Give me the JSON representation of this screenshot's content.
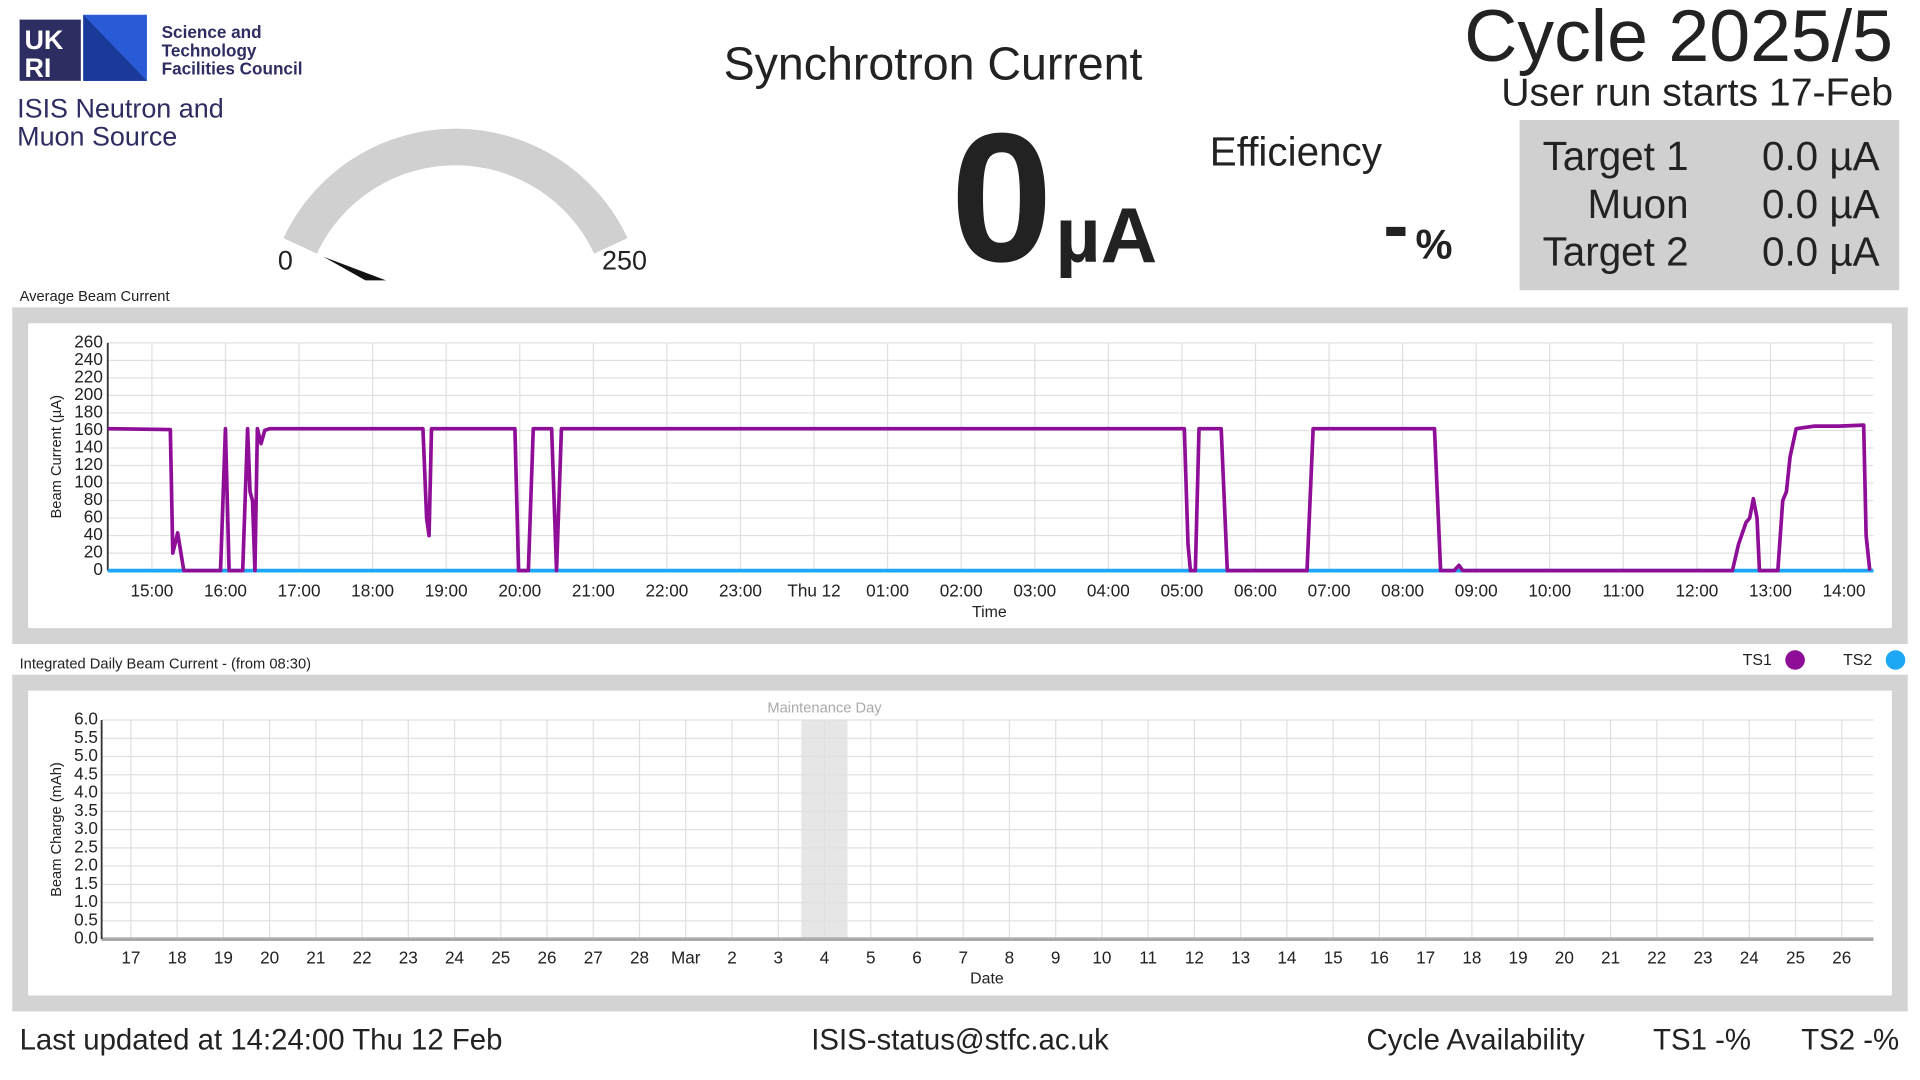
{
  "logo": [
    "UK",
    "RI"
  ],
  "header": {
    "org": [
      "Science and",
      "Technology",
      "Facilities Council"
    ],
    "source": [
      "ISIS Neutron and",
      "Muon Source"
    ],
    "title": "Synchrotron Current",
    "cycle": "Cycle 2025/5",
    "run_start": "User run starts 17-Feb"
  },
  "gauge": {
    "min": 0,
    "max": 250
  },
  "current": {
    "value": 0,
    "unit": "µA"
  },
  "efficiency": {
    "label": "Efficiency",
    "value": "-",
    "unit": "%"
  },
  "targets": [
    {
      "name": "Target 1",
      "value": "0.0 µA"
    },
    {
      "name": "Muon",
      "value": "0.0 µA"
    },
    {
      "name": "Target 2",
      "value": "0.0 µA"
    }
  ],
  "chart_data": [
    {
      "type": "line",
      "title": "Average Beam Current",
      "xlabel": "Time",
      "ylabel": "Beam Current (µA)",
      "xlim": [
        "14:24",
        "14:24"
      ],
      "xticks": [
        "15:00",
        "16:00",
        "17:00",
        "18:00",
        "19:00",
        "20:00",
        "21:00",
        "22:00",
        "23:00",
        {
          "value": "00:00",
          "label": "Thu 12"
        },
        "01:00",
        "02:00",
        "03:00",
        "04:00",
        "05:00",
        "06:00",
        "07:00",
        "08:00",
        "09:00",
        "10:00",
        "11:00",
        "12:00",
        "13:00",
        "14:00"
      ],
      "ylim": [
        0,
        260
      ],
      "yticks": [
        0,
        20,
        40,
        60,
        80,
        100,
        120,
        140,
        160,
        180,
        200,
        220,
        240,
        260
      ],
      "grid": true,
      "series": [
        {
          "name": "TS1",
          "color": "#8e0e98",
          "x": [
            "14:24",
            "15:15",
            "15:17",
            "15:21",
            "15:26",
            "15:56",
            "16:00",
            "16:03",
            "16:14",
            "16:18",
            "16:20",
            "16:22",
            "16:24",
            "16:26",
            "16:29",
            "16:32",
            "16:36",
            "18:41",
            "18:44",
            "18:46",
            "18:48",
            "19:56",
            "19:59",
            "20:07",
            "20:11",
            "20:26",
            "20:30",
            "20:34",
            "05:02",
            "05:05",
            "05:07",
            "05:11",
            "05:14",
            "05:32",
            "05:37",
            "06:42",
            "06:47",
            "08:26",
            "08:31",
            "08:42",
            "08:46",
            "08:49",
            "12:29",
            "12:34",
            "12:40",
            "12:43",
            "12:46",
            "12:49",
            "12:51",
            "13:06",
            "13:10",
            "13:13",
            "13:16",
            "13:21",
            "13:26",
            "13:36",
            "13:56",
            "14:16",
            "14:18",
            "14:21"
          ],
          "values": [
            162,
            161,
            20,
            43,
            0,
            0,
            162,
            0,
            0,
            162,
            90,
            80,
            0,
            162,
            145,
            160,
            162,
            162,
            60,
            40,
            162,
            162,
            0,
            0,
            162,
            162,
            0,
            162,
            162,
            30,
            0,
            0,
            162,
            162,
            0,
            0,
            162,
            162,
            0,
            0,
            6,
            0,
            0,
            30,
            55,
            60,
            82,
            60,
            0,
            0,
            80,
            90,
            130,
            162,
            163,
            165,
            165,
            166,
            40,
            0
          ]
        },
        {
          "name": "TS2",
          "color": "#1ea7f5",
          "x": [
            "14:24",
            "14:24"
          ],
          "values": [
            0,
            0
          ]
        }
      ]
    },
    {
      "type": "bar",
      "title": "Integrated Daily Beam Current - (from 08:30)",
      "xlabel": "Date",
      "ylabel": "Beam Charge (mAh)",
      "categories": [
        "17",
        "18",
        "19",
        "20",
        "21",
        "22",
        "23",
        "24",
        "25",
        "26",
        "27",
        "28",
        "Mar",
        "2",
        "3",
        "4",
        "5",
        "6",
        "7",
        "8",
        "9",
        "10",
        "11",
        "12",
        "13",
        "14",
        "15",
        "16",
        "17",
        "18",
        "19",
        "20",
        "21",
        "22",
        "23",
        "24",
        "25",
        "26"
      ],
      "ylim": [
        0,
        6
      ],
      "yticks": [
        {
          "value": 0,
          "label": "0.0"
        },
        {
          "value": 0.5,
          "label": "0.5"
        },
        {
          "value": 1,
          "label": "1.0"
        },
        {
          "value": 1.5,
          "label": "1.5"
        },
        {
          "value": 2,
          "label": "2.0"
        },
        {
          "value": 2.5,
          "label": "2.5"
        },
        {
          "value": 3,
          "label": "3.0"
        },
        {
          "value": 3.5,
          "label": "3.5"
        },
        {
          "value": 4,
          "label": "4.0"
        },
        {
          "value": 4.5,
          "label": "4.5"
        },
        {
          "value": 5,
          "label": "5.0"
        },
        {
          "value": 5.5,
          "label": "5.5"
        },
        {
          "value": 6,
          "label": "6.0"
        }
      ],
      "grid": true,
      "annotations": [
        {
          "category": "4",
          "text": "Maintenance Day"
        }
      ]
    }
  ],
  "footer": {
    "updated": "Last updated at 14:24:00 Thu 12 Feb",
    "email": "ISIS-status@stfc.ac.uk",
    "availability": "Cycle Availability",
    "ts1": "TS1 -%",
    "ts2": "TS2 -%"
  }
}
